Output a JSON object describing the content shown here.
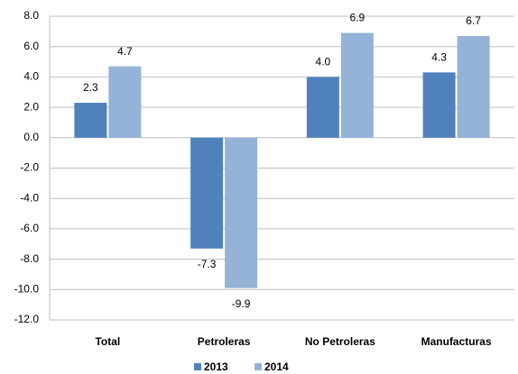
{
  "chart_data": {
    "type": "bar",
    "categories": [
      "Total",
      "Petroleras",
      "No Petroleras",
      "Manufacturas"
    ],
    "series": [
      {
        "name": "2013",
        "color": "#4f81bd",
        "values": [
          2.3,
          -7.3,
          4.0,
          4.3
        ],
        "value_labels": [
          "2.3",
          "-7.3",
          "4.0",
          "4.3"
        ]
      },
      {
        "name": "2014",
        "color": "#95b3d7",
        "values": [
          4.7,
          -9.9,
          6.9,
          6.7
        ],
        "value_labels": [
          "4.7",
          "-9.9",
          "6.9",
          "6.7"
        ]
      }
    ],
    "ylim": [
      -12,
      8
    ],
    "yticks": [
      {
        "value": -12,
        "label": "-12.0"
      },
      {
        "value": -10,
        "label": "-10.0"
      },
      {
        "value": -8,
        "label": "-8.0"
      },
      {
        "value": -6,
        "label": "-6.0"
      },
      {
        "value": -4,
        "label": "-4.0"
      },
      {
        "value": -2,
        "label": "-2.0"
      },
      {
        "value": 0,
        "label": "0.0"
      },
      {
        "value": 2,
        "label": "2.0"
      },
      {
        "value": 4,
        "label": "4.0"
      },
      {
        "value": 6,
        "label": "6.0"
      },
      {
        "value": 8,
        "label": "8.0"
      }
    ],
    "grid": true,
    "legend": "bottom"
  }
}
